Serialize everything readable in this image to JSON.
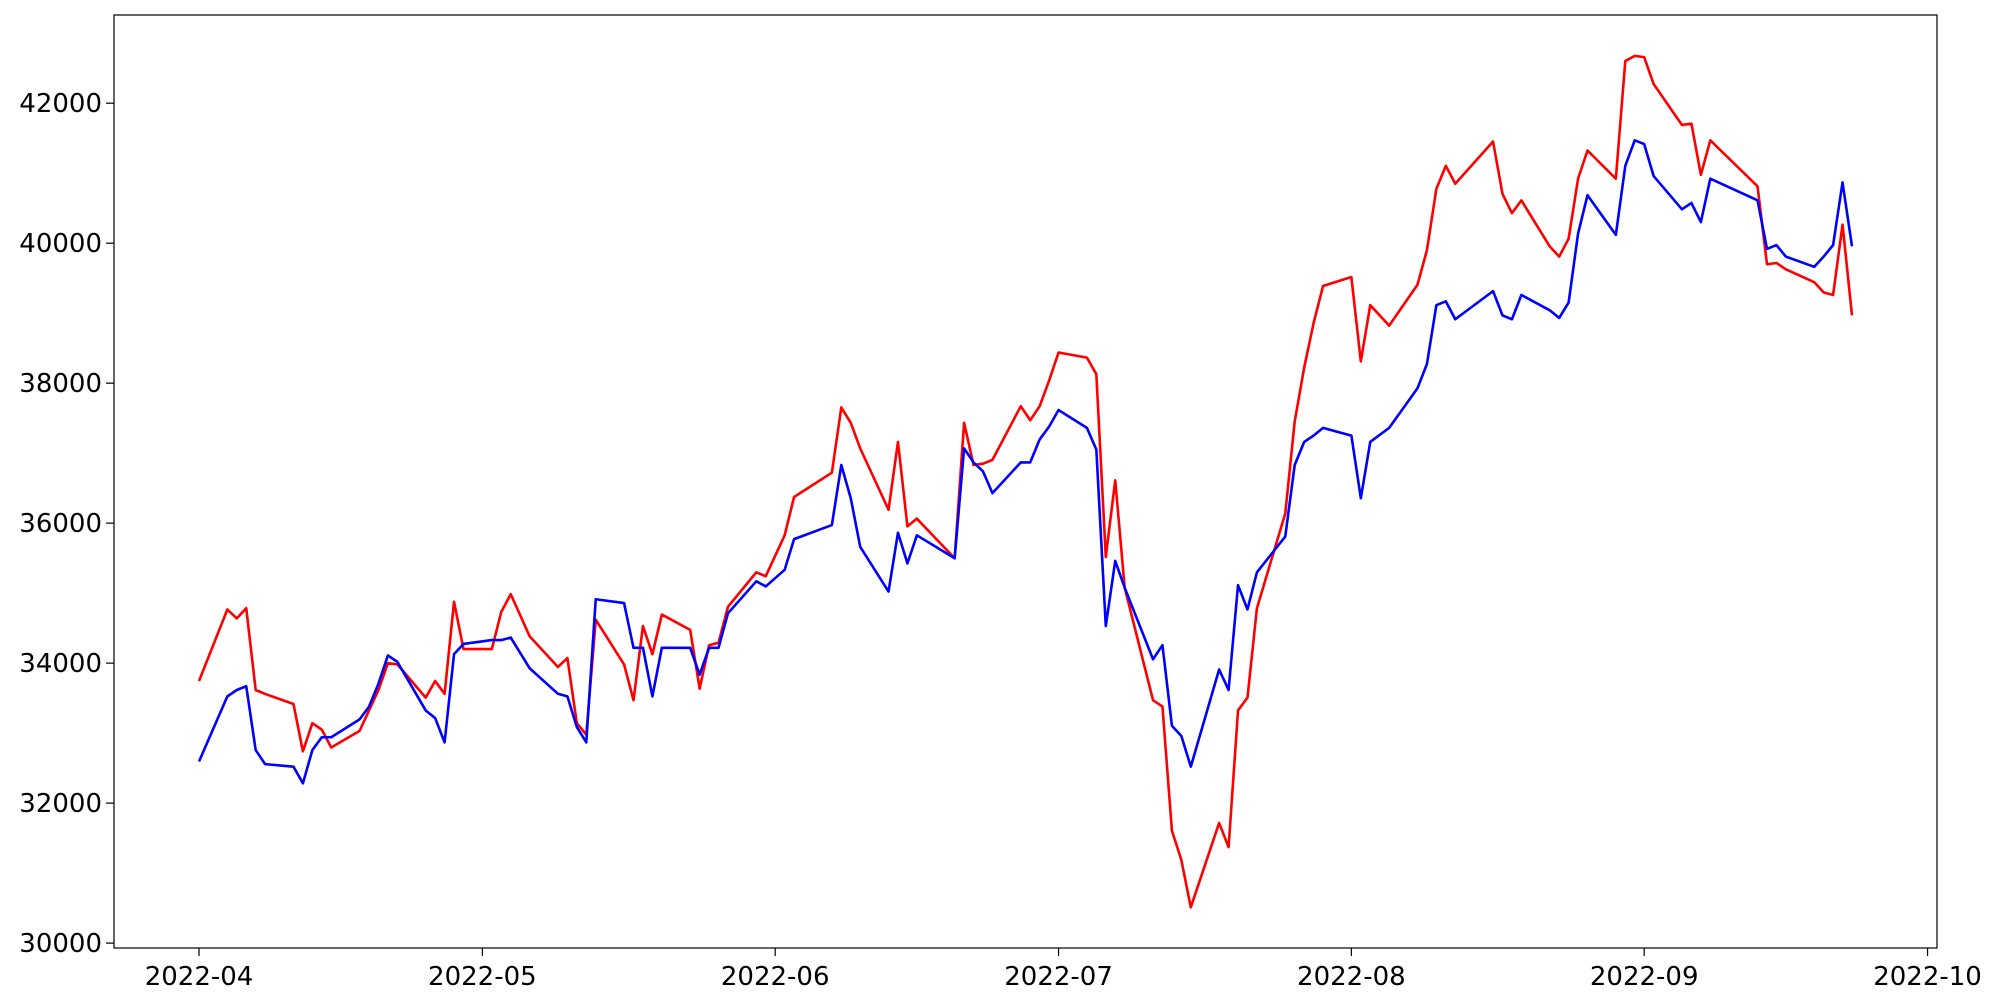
{
  "chart_data": {
    "type": "line",
    "x": [
      "2022-04-01",
      "2022-04-04",
      "2022-04-05",
      "2022-04-06",
      "2022-04-07",
      "2022-04-08",
      "2022-04-11",
      "2022-04-12",
      "2022-04-13",
      "2022-04-14",
      "2022-04-15",
      "2022-04-18",
      "2022-04-19",
      "2022-04-20",
      "2022-04-21",
      "2022-04-22",
      "2022-04-25",
      "2022-04-26",
      "2022-04-27",
      "2022-04-28",
      "2022-04-29",
      "2022-05-02",
      "2022-05-03",
      "2022-05-04",
      "2022-05-06",
      "2022-05-09",
      "2022-05-10",
      "2022-05-11",
      "2022-05-12",
      "2022-05-13",
      "2022-05-16",
      "2022-05-17",
      "2022-05-18",
      "2022-05-19",
      "2022-05-20",
      "2022-05-23",
      "2022-05-24",
      "2022-05-25",
      "2022-05-26",
      "2022-05-27",
      "2022-05-30",
      "2022-05-31",
      "2022-06-02",
      "2022-06-03",
      "2022-06-07",
      "2022-06-08",
      "2022-06-09",
      "2022-06-10",
      "2022-06-13",
      "2022-06-14",
      "2022-06-15",
      "2022-06-16",
      "2022-06-20",
      "2022-06-21",
      "2022-06-22",
      "2022-06-23",
      "2022-06-24",
      "2022-06-27",
      "2022-06-28",
      "2022-06-29",
      "2022-06-30",
      "2022-07-01",
      "2022-07-04",
      "2022-07-05",
      "2022-07-06",
      "2022-07-07",
      "2022-07-08",
      "2022-07-11",
      "2022-07-12",
      "2022-07-13",
      "2022-07-14",
      "2022-07-15",
      "2022-07-18",
      "2022-07-19",
      "2022-07-20",
      "2022-07-21",
      "2022-07-22",
      "2022-07-25",
      "2022-07-26",
      "2022-07-27",
      "2022-07-28",
      "2022-07-29",
      "2022-08-01",
      "2022-08-02",
      "2022-08-03",
      "2022-08-05",
      "2022-08-08",
      "2022-08-09",
      "2022-08-10",
      "2022-08-11",
      "2022-08-12",
      "2022-08-16",
      "2022-08-17",
      "2022-08-18",
      "2022-08-19",
      "2022-08-22",
      "2022-08-23",
      "2022-08-24",
      "2022-08-25",
      "2022-08-26",
      "2022-08-29",
      "2022-08-30",
      "2022-08-31",
      "2022-09-01",
      "2022-09-02",
      "2022-09-05",
      "2022-09-06",
      "2022-09-07",
      "2022-09-08",
      "2022-09-13",
      "2022-09-14",
      "2022-09-15",
      "2022-09-16",
      "2022-09-19",
      "2022-09-20",
      "2022-09-21",
      "2022-09-22",
      "2022-09-23"
    ],
    "series": [
      {
        "color": "#ff0000",
        "values": [
          33744,
          34767,
          34639,
          34785,
          33616,
          33560,
          33416,
          32740,
          33142,
          33050,
          32795,
          33032,
          33324,
          33616,
          34000,
          33982,
          33507,
          33744,
          33562,
          34877,
          34201,
          34201,
          34731,
          34986,
          34384,
          33945,
          34073,
          33142,
          32977,
          34621,
          33982,
          33470,
          34530,
          34128,
          34694,
          34475,
          33635,
          34256,
          34292,
          34804,
          35297,
          35242,
          35826,
          36374,
          36721,
          37653,
          37434,
          37068,
          36192,
          37160,
          35954,
          36064,
          35498,
          37434,
          36831,
          36849,
          36904,
          37671,
          37470,
          37671,
          38037,
          38438,
          38365,
          38128,
          35516,
          36612,
          35078,
          33470,
          33379,
          31607,
          31187,
          30511,
          31717,
          31370,
          33324,
          33507,
          34785,
          36137,
          37452,
          38219,
          38858,
          39388,
          39516,
          38311,
          39114,
          38822,
          39406,
          39900,
          40776,
          41105,
          40849,
          41452,
          40703,
          40429,
          40612,
          39954,
          39808,
          40064,
          40922,
          41324,
          40922,
          42603,
          42676,
          42658,
          42274,
          41689,
          41708,
          40977,
          41470,
          40813,
          39699,
          39717,
          39626,
          39443,
          39297,
          39260,
          40265,
          38968
        ]
      },
      {
        "color": "#0000ff",
        "values": [
          32594,
          33525,
          33616,
          33671,
          32758,
          32557,
          32521,
          32283,
          32758,
          32941,
          32941,
          33196,
          33379,
          33708,
          34110,
          34018,
          33324,
          33215,
          32868,
          34128,
          34274,
          34329,
          34329,
          34365,
          33927,
          33562,
          33525,
          33087,
          32868,
          34913,
          34858,
          34219,
          34219,
          33525,
          34219,
          34219,
          33835,
          34219,
          34219,
          34712,
          35169,
          35096,
          35333,
          35772,
          35973,
          36831,
          36356,
          35662,
          35023,
          35863,
          35425,
          35826,
          35498,
          37068,
          36867,
          36740,
          36429,
          36868,
          36868,
          37196,
          37379,
          37616,
          37361,
          37050,
          34530,
          35461,
          35078,
          34055,
          34256,
          33105,
          32959,
          32521,
          33909,
          33616,
          35114,
          34767,
          35297,
          35808,
          36831,
          37160,
          37251,
          37361,
          37251,
          36356,
          37160,
          37361,
          37927,
          38274,
          39114,
          39169,
          38913,
          39315,
          38968,
          38913,
          39260,
          39041,
          38932,
          39151,
          40137,
          40685,
          40119,
          41105,
          41470,
          41416,
          40959,
          40484,
          40575,
          40301,
          40922,
          40612,
          39918,
          39973,
          39808,
          39662,
          39808,
          39973,
          40868,
          39955
        ]
      }
    ],
    "xlim": [
      "2022-03-23",
      "2022-10-02"
    ],
    "xticks": [
      {
        "value": "2022-04-01",
        "label": "2022-04"
      },
      {
        "value": "2022-05-01",
        "label": "2022-05"
      },
      {
        "value": "2022-06-01",
        "label": "2022-06"
      },
      {
        "value": "2022-07-01",
        "label": "2022-07"
      },
      {
        "value": "2022-08-01",
        "label": "2022-08"
      },
      {
        "value": "2022-09-01",
        "label": "2022-09"
      },
      {
        "value": "2022-10-01",
        "label": "2022-10"
      }
    ],
    "ylim": [
      29930,
      43260
    ],
    "yticks": [
      30000,
      32000,
      34000,
      36000,
      38000,
      40000,
      42000
    ],
    "grid": false
  }
}
